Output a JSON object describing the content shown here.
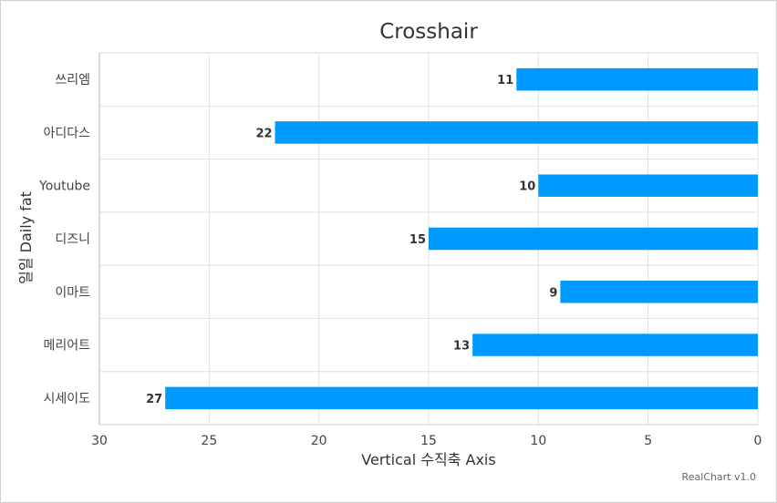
{
  "chart_data": {
    "type": "bar",
    "orientation": "horizontal",
    "title": "Crosshair",
    "categories": [
      "쓰리엠",
      "아디다스",
      "Youtube",
      "디즈니",
      "이마트",
      "메리어트",
      "시세이도"
    ],
    "values": [
      11,
      22,
      10,
      15,
      9,
      13,
      27
    ],
    "xlabel": "Vertical 수직축 Axis",
    "ylabel": "일일 Daily fat",
    "xlim": [
      0,
      30
    ],
    "x_reversed": true,
    "x_ticks": [
      "0",
      "5",
      "10",
      "15",
      "20",
      "25",
      "30"
    ],
    "grid": true,
    "data_labels": true,
    "bar_color": "#0099ff",
    "credit": "RealChart v1.0"
  }
}
